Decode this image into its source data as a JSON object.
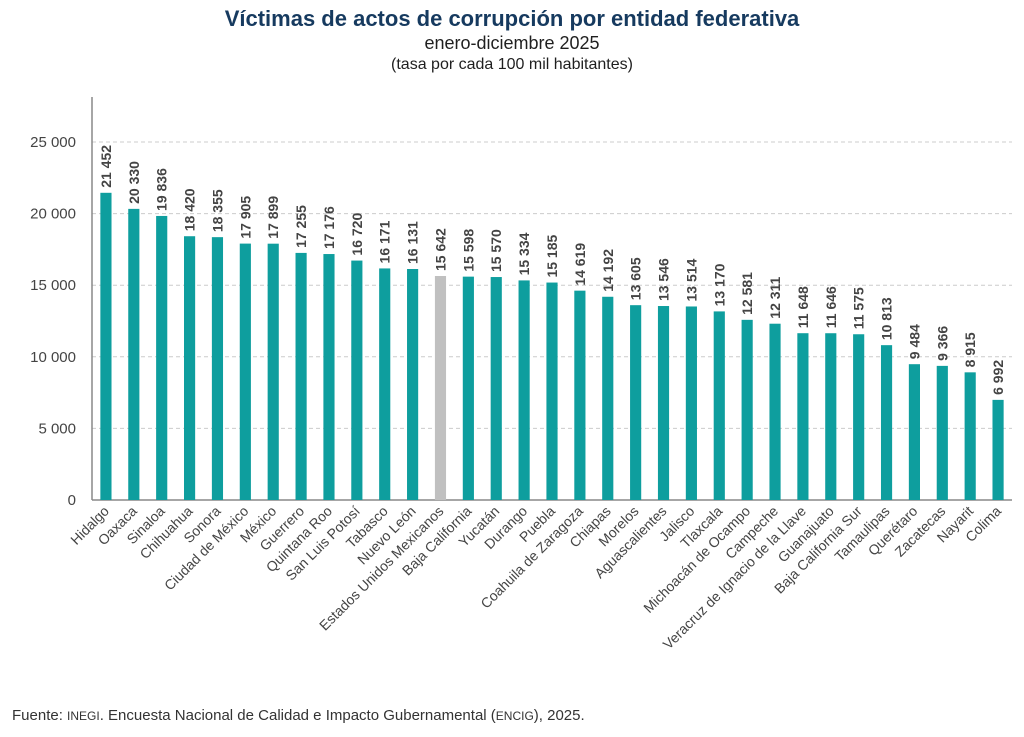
{
  "header": {
    "title": "Víctimas de actos de corrupción por entidad federativa",
    "subtitle": "enero-diciembre 2025",
    "note": "(tasa por cada 100 mil habitantes)"
  },
  "source": {
    "prefix": "Fuente: ",
    "org": "INEGI",
    "middle": ". Encuesta Nacional de Calidad e Impacto Gubernamental (",
    "survey": "ENCIG",
    "suffix": "), 2025."
  },
  "colors": {
    "bar": "#0e9e9e",
    "highlight": "#c0c0c0",
    "axis": "#888888",
    "grid": "#cccccc",
    "text": "#444444"
  },
  "chart_data": {
    "type": "bar",
    "ylim": [
      0,
      25000
    ],
    "yticks": [
      0,
      5000,
      10000,
      15000,
      20000,
      25000
    ],
    "ytick_labels": [
      "0",
      "5 000",
      "10 000",
      "15 000",
      "20 000",
      "25 000"
    ],
    "grid": true,
    "highlight_category": "Estados Unidos Mexicanos",
    "categories": [
      "Hidalgo",
      "Oaxaca",
      "Sinaloa",
      "Chihuahua",
      "Sonora",
      "Ciudad de México",
      "México",
      "Guerrero",
      "Quintana Roo",
      "San Luis Potosí",
      "Tabasco",
      "Nuevo León",
      "Estados Unidos Mexicanos",
      "Baja California",
      "Yucatán",
      "Durango",
      "Puebla",
      "Coahuila de Zaragoza",
      "Chiapas",
      "Morelos",
      "Aguascalientes",
      "Jalisco",
      "Tlaxcala",
      "Michoacán de Ocampo",
      "Campeche",
      "Veracruz de Ignacio de la Llave",
      "Guanajuato",
      "Baja California Sur",
      "Tamaulipas",
      "Querétaro",
      "Zacatecas",
      "Nayarit",
      "Colima"
    ],
    "values": [
      21452,
      20330,
      19836,
      18420,
      18355,
      17905,
      17899,
      17255,
      17176,
      16720,
      16171,
      16131,
      15642,
      15598,
      15570,
      15334,
      15185,
      14619,
      14192,
      13605,
      13546,
      13514,
      13170,
      12581,
      12311,
      11648,
      11646,
      11575,
      10813,
      9484,
      9366,
      8915,
      6992
    ],
    "value_labels": [
      "21 452",
      "20 330",
      "19 836",
      "18 420",
      "18 355",
      "17 905",
      "17 899",
      "17 255",
      "17 176",
      "16 720",
      "16 171",
      "16 131",
      "15 642",
      "15 598",
      "15 570",
      "15 334",
      "15 185",
      "14 619",
      "14 192",
      "13 605",
      "13 546",
      "13 514",
      "13 170",
      "12 581",
      "12 311",
      "11 648",
      "11 646",
      "11 575",
      "10 813",
      "9 484",
      "9 366",
      "8 915",
      "6 992"
    ]
  }
}
